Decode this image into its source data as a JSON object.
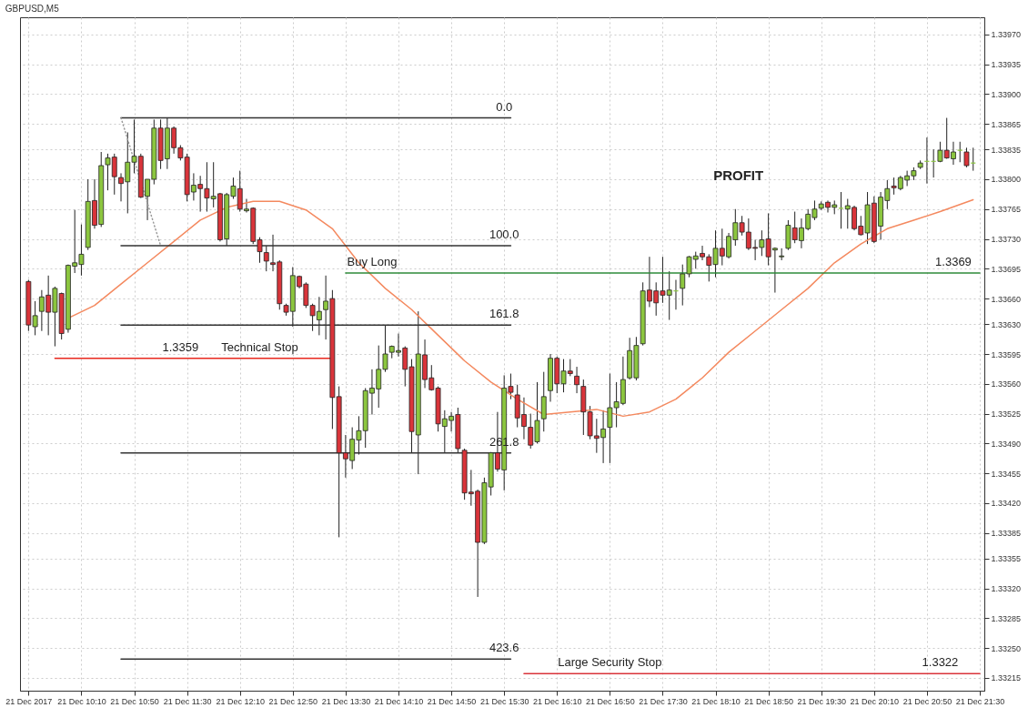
{
  "chart_data": {
    "type": "candlestick",
    "title": "GBPUSD,M5",
    "x": [
      "2017-12-21T09:30",
      "2017-12-21T09:35",
      "2017-12-21T09:40",
      "2017-12-21T09:45",
      "2017-12-21T09:50",
      "2017-12-21T09:55",
      "2017-12-21T10:00",
      "2017-12-21T10:05",
      "2017-12-21T10:10",
      "2017-12-21T10:15",
      "2017-12-21T10:20",
      "2017-12-21T10:25",
      "2017-12-21T10:30",
      "2017-12-21T10:35",
      "2017-12-21T10:40",
      "2017-12-21T10:45",
      "2017-12-21T10:50",
      "2017-12-21T10:55",
      "2017-12-21T11:00",
      "2017-12-21T11:05",
      "2017-12-21T11:10",
      "2017-12-21T11:15",
      "2017-12-21T11:20",
      "2017-12-21T11:25",
      "2017-12-21T11:30",
      "2017-12-21T11:35",
      "2017-12-21T11:40",
      "2017-12-21T11:45",
      "2017-12-21T11:50",
      "2017-12-21T11:55",
      "2017-12-21T12:00",
      "2017-12-21T12:05",
      "2017-12-21T12:10",
      "2017-12-21T12:15",
      "2017-12-21T12:20",
      "2017-12-21T12:25",
      "2017-12-21T12:30",
      "2017-12-21T12:35",
      "2017-12-21T12:40",
      "2017-12-21T12:45",
      "2017-12-21T12:50",
      "2017-12-21T12:55",
      "2017-12-21T13:00",
      "2017-12-21T13:05",
      "2017-12-21T13:10",
      "2017-12-21T13:15",
      "2017-12-21T13:20",
      "2017-12-21T13:25",
      "2017-12-21T13:30",
      "2017-12-21T13:35",
      "2017-12-21T13:40",
      "2017-12-21T13:45",
      "2017-12-21T13:50",
      "2017-12-21T13:55",
      "2017-12-21T14:00",
      "2017-12-21T14:05",
      "2017-12-21T14:10",
      "2017-12-21T14:15",
      "2017-12-21T14:20",
      "2017-12-21T14:25",
      "2017-12-21T14:30",
      "2017-12-21T14:35",
      "2017-12-21T14:40",
      "2017-12-21T14:45",
      "2017-12-21T14:50",
      "2017-12-21T14:55",
      "2017-12-21T15:00",
      "2017-12-21T15:05",
      "2017-12-21T15:10",
      "2017-12-21T15:15",
      "2017-12-21T15:20",
      "2017-12-21T15:25",
      "2017-12-21T15:30",
      "2017-12-21T15:35",
      "2017-12-21T15:40",
      "2017-12-21T15:45",
      "2017-12-21T15:50",
      "2017-12-21T15:55",
      "2017-12-21T16:00",
      "2017-12-21T16:05",
      "2017-12-21T16:10",
      "2017-12-21T16:15",
      "2017-12-21T16:20",
      "2017-12-21T16:25",
      "2017-12-21T16:30",
      "2017-12-21T16:35",
      "2017-12-21T16:40",
      "2017-12-21T16:45",
      "2017-12-21T16:50",
      "2017-12-21T16:55",
      "2017-12-21T17:00",
      "2017-12-21T17:05",
      "2017-12-21T17:10",
      "2017-12-21T17:15",
      "2017-12-21T17:20",
      "2017-12-21T17:25",
      "2017-12-21T17:30",
      "2017-12-21T17:35",
      "2017-12-21T17:40",
      "2017-12-21T17:45",
      "2017-12-21T17:50",
      "2017-12-21T17:55",
      "2017-12-21T18:00",
      "2017-12-21T18:05",
      "2017-12-21T18:10",
      "2017-12-21T18:15",
      "2017-12-21T18:20",
      "2017-12-21T18:25",
      "2017-12-21T18:30",
      "2017-12-21T18:35",
      "2017-12-21T18:40",
      "2017-12-21T18:45",
      "2017-12-21T18:50",
      "2017-12-21T18:55",
      "2017-12-21T19:00",
      "2017-12-21T19:05",
      "2017-12-21T19:10",
      "2017-12-21T19:15",
      "2017-12-21T19:20",
      "2017-12-21T19:25",
      "2017-12-21T19:30",
      "2017-12-21T19:35",
      "2017-12-21T19:40",
      "2017-12-21T19:45",
      "2017-12-21T19:50",
      "2017-12-21T19:55",
      "2017-12-21T20:00",
      "2017-12-21T20:05",
      "2017-12-21T20:10",
      "2017-12-21T20:15",
      "2017-12-21T20:20",
      "2017-12-21T20:25",
      "2017-12-21T20:30",
      "2017-12-21T20:35",
      "2017-12-21T20:40",
      "2017-12-21T20:45",
      "2017-12-21T20:50",
      "2017-12-21T20:55",
      "2017-12-21T21:00",
      "2017-12-21T21:05",
      "2017-12-21T21:10",
      "2017-12-21T21:15",
      "2017-12-21T21:20",
      "2017-12-21T21:25"
    ],
    "ohlc": [
      [
        1.3368,
        1.33682,
        1.33622,
        1.33629
      ],
      [
        1.33627,
        1.33657,
        1.33617,
        1.3364
      ],
      [
        1.33645,
        1.3367,
        1.33622,
        1.33662
      ],
      [
        1.33664,
        1.33687,
        1.33617,
        1.33644
      ],
      [
        1.33644,
        1.33674,
        1.33604,
        1.33672
      ],
      [
        1.33666,
        1.33667,
        1.33612,
        1.33619
      ],
      [
        1.33624,
        1.337,
        1.3362,
        1.33699
      ],
      [
        1.33698,
        1.33764,
        1.3369,
        1.33702
      ],
      [
        1.337,
        1.33747,
        1.33687,
        1.33712
      ],
      [
        1.3372,
        1.338,
        1.33717,
        1.33774
      ],
      [
        1.33775,
        1.338,
        1.33742,
        1.33746
      ],
      [
        1.33747,
        1.33832,
        1.33744,
        1.33816
      ],
      [
        1.33817,
        1.3383,
        1.33787,
        1.33825
      ],
      [
        1.33826,
        1.3383,
        1.33782,
        1.33803
      ],
      [
        1.33802,
        1.33807,
        1.33774,
        1.33795
      ],
      [
        1.33797,
        1.33855,
        1.3376,
        1.3382
      ],
      [
        1.3382,
        1.3387,
        1.33807,
        1.33827
      ],
      [
        1.33827,
        1.3383,
        1.33778,
        1.33779
      ],
      [
        1.3378,
        1.338,
        1.33752,
        1.338
      ],
      [
        1.338,
        1.3387,
        1.33794,
        1.3386
      ],
      [
        1.3386,
        1.3387,
        1.33812,
        1.33822
      ],
      [
        1.33824,
        1.33872,
        1.33812,
        1.3386
      ],
      [
        1.3386,
        1.33862,
        1.3383,
        1.33837
      ],
      [
        1.33837,
        1.3384,
        1.33822,
        1.33825
      ],
      [
        1.33826,
        1.3383,
        1.33774,
        1.33782
      ],
      [
        1.33785,
        1.33807,
        1.33775,
        1.33793
      ],
      [
        1.33794,
        1.33804,
        1.33762,
        1.33789
      ],
      [
        1.33789,
        1.3382,
        1.33762,
        1.33778
      ],
      [
        1.33777,
        1.3382,
        1.33767,
        1.3378
      ],
      [
        1.33783,
        1.33784,
        1.33727,
        1.33729
      ],
      [
        1.3373,
        1.33784,
        1.33722,
        1.33782
      ],
      [
        1.3378,
        1.33802,
        1.33777,
        1.33792
      ],
      [
        1.33789,
        1.3381,
        1.33762,
        1.33765
      ],
      [
        1.33763,
        1.33777,
        1.33761,
        1.33765
      ],
      [
        1.33766,
        1.33767,
        1.33724,
        1.33727
      ],
      [
        1.33729,
        1.33732,
        1.33702,
        1.33715
      ],
      [
        1.33714,
        1.33722,
        1.33692,
        1.33704
      ],
      [
        1.33702,
        1.33735,
        1.33692,
        1.337
      ],
      [
        1.33703,
        1.33705,
        1.33647,
        1.33654
      ],
      [
        1.33652,
        1.33654,
        1.3364,
        1.33644
      ],
      [
        1.33645,
        1.33697,
        1.33627,
        1.33687
      ],
      [
        1.33686,
        1.33687,
        1.33672,
        1.33674
      ],
      [
        1.33677,
        1.33679,
        1.33649,
        1.33652
      ],
      [
        1.33652,
        1.33654,
        1.33622,
        1.3364
      ],
      [
        1.33635,
        1.33662,
        1.33617,
        1.33645
      ],
      [
        1.33647,
        1.33687,
        1.33612,
        1.33657
      ],
      [
        1.3366,
        1.3367,
        1.33507,
        1.33544
      ],
      [
        1.33545,
        1.33557,
        1.3338,
        1.33479
      ],
      [
        1.33479,
        1.335,
        1.3345,
        1.33472
      ],
      [
        1.3347,
        1.33509,
        1.3346,
        1.33495
      ],
      [
        1.33494,
        1.33522,
        1.33477,
        1.33505
      ],
      [
        1.33505,
        1.33555,
        1.33485,
        1.33552
      ],
      [
        1.33549,
        1.33577,
        1.33524,
        1.33555
      ],
      [
        1.33554,
        1.33605,
        1.33532,
        1.33577
      ],
      [
        1.33577,
        1.33629,
        1.33574,
        1.33595
      ],
      [
        1.33597,
        1.33605,
        1.3359,
        1.33604
      ],
      [
        1.33597,
        1.33619,
        1.33592,
        1.33599
      ],
      [
        1.33602,
        1.33604,
        1.33557,
        1.33577
      ],
      [
        1.3358,
        1.33589,
        1.33479,
        1.33504
      ],
      [
        1.335,
        1.33645,
        1.33454,
        1.33595
      ],
      [
        1.33594,
        1.33612,
        1.33555,
        1.33565
      ],
      [
        1.33567,
        1.33582,
        1.33552,
        1.33553
      ],
      [
        1.33555,
        1.33557,
        1.33504,
        1.33513
      ],
      [
        1.3351,
        1.33529,
        1.33479,
        1.33519
      ],
      [
        1.33517,
        1.33527,
        1.33504,
        1.33522
      ],
      [
        1.33524,
        1.33532,
        1.33479,
        1.33484
      ],
      [
        1.33482,
        1.33484,
        1.33424,
        1.33432
      ],
      [
        1.33433,
        1.33459,
        1.33417,
        1.33431
      ],
      [
        1.33434,
        1.33436,
        1.3331,
        1.33374
      ],
      [
        1.33374,
        1.3345,
        1.33372,
        1.33444
      ],
      [
        1.33439,
        1.3348,
        1.33429,
        1.33479
      ],
      [
        1.33479,
        1.33527,
        1.33457,
        1.3346
      ],
      [
        1.33459,
        1.3357,
        1.33435,
        1.33555
      ],
      [
        1.33557,
        1.33572,
        1.33542,
        1.3355
      ],
      [
        1.33547,
        1.33559,
        1.33509,
        1.3352
      ],
      [
        1.33524,
        1.33544,
        1.33495,
        1.3351
      ],
      [
        1.33509,
        1.33525,
        1.33484,
        1.33488
      ],
      [
        1.33492,
        1.33562,
        1.3349,
        1.33517
      ],
      [
        1.33519,
        1.33574,
        1.33504,
        1.33545
      ],
      [
        1.33552,
        1.33595,
        1.33539,
        1.3359
      ],
      [
        1.3359,
        1.33592,
        1.33549,
        1.3356
      ],
      [
        1.3356,
        1.33589,
        1.3355,
        1.33575
      ],
      [
        1.33575,
        1.33589,
        1.33569,
        1.33572
      ],
      [
        1.33569,
        1.3358,
        1.33549,
        1.33559
      ],
      [
        1.33557,
        1.33565,
        1.335,
        1.33527
      ],
      [
        1.33527,
        1.33534,
        1.33495,
        1.33499
      ],
      [
        1.33499,
        1.33519,
        1.33479,
        1.33496
      ],
      [
        1.33497,
        1.33529,
        1.33467,
        1.33507
      ],
      [
        1.33509,
        1.33572,
        1.33467,
        1.33532
      ],
      [
        1.33532,
        1.33562,
        1.33509,
        1.33539
      ],
      [
        1.33537,
        1.33592,
        1.33535,
        1.33565
      ],
      [
        1.33567,
        1.33614,
        1.33565,
        1.33599
      ],
      [
        1.33567,
        1.33615,
        1.33564,
        1.33605
      ],
      [
        1.33607,
        1.33679,
        1.33605,
        1.33669
      ],
      [
        1.3367,
        1.33709,
        1.3365,
        1.33657
      ],
      [
        1.33669,
        1.33679,
        1.3364,
        1.33655
      ],
      [
        1.33669,
        1.33709,
        1.33655,
        1.33664
      ],
      [
        1.33664,
        1.33692,
        1.33635,
        1.3367
      ],
      [
        1.33669,
        1.33682,
        1.33647,
        1.33669
      ],
      [
        1.33672,
        1.337,
        1.33652,
        1.33689
      ],
      [
        1.33689,
        1.3371,
        1.33685,
        1.33709
      ],
      [
        1.33706,
        1.33715,
        1.33695,
        1.3371
      ],
      [
        1.33713,
        1.33722,
        1.33705,
        1.33709
      ],
      [
        1.33709,
        1.33712,
        1.3368,
        1.33699
      ],
      [
        1.337,
        1.3374,
        1.33685,
        1.33719
      ],
      [
        1.33719,
        1.33742,
        1.33699,
        1.3371
      ],
      [
        1.33709,
        1.33737,
        1.33707,
        1.33733
      ],
      [
        1.33729,
        1.33765,
        1.33722,
        1.33749
      ],
      [
        1.33749,
        1.33757,
        1.33734,
        1.33738
      ],
      [
        1.33738,
        1.33754,
        1.33717,
        1.33719
      ],
      [
        1.3372,
        1.33729,
        1.33705,
        1.33719
      ],
      [
        1.3372,
        1.3374,
        1.3371,
        1.33729
      ],
      [
        1.3373,
        1.3376,
        1.33699,
        1.33709
      ],
      [
        1.33717,
        1.3372,
        1.33667,
        1.33719
      ],
      [
        1.33709,
        1.33719,
        1.33705,
        1.3371
      ],
      [
        1.33719,
        1.33752,
        1.33717,
        1.33746
      ],
      [
        1.33743,
        1.33762,
        1.33725,
        1.33729
      ],
      [
        1.33728,
        1.33754,
        1.33719,
        1.33743
      ],
      [
        1.33742,
        1.33765,
        1.3374,
        1.33759
      ],
      [
        1.33755,
        1.33775,
        1.33752,
        1.33765
      ],
      [
        1.33766,
        1.33774,
        1.33764,
        1.33771
      ],
      [
        1.33773,
        1.33775,
        1.33761,
        1.33767
      ],
      [
        1.33767,
        1.33775,
        1.33759,
        1.3377
      ],
      [
        1.33766,
        1.33785,
        1.33742,
        1.33766
      ],
      [
        1.33765,
        1.33777,
        1.33742,
        1.33769
      ],
      [
        1.33767,
        1.33769,
        1.3374,
        1.33742
      ],
      [
        1.33745,
        1.33757,
        1.33734,
        1.33735
      ],
      [
        1.33737,
        1.33785,
        1.33724,
        1.3377
      ],
      [
        1.33772,
        1.3378,
        1.33725,
        1.33727
      ],
      [
        1.33745,
        1.33785,
        1.33729,
        1.33779
      ],
      [
        1.33775,
        1.33799,
        1.33765,
        1.33789
      ],
      [
        1.33792,
        1.33802,
        1.33782,
        1.3379
      ],
      [
        1.33789,
        1.33804,
        1.33787,
        1.33802
      ],
      [
        1.33799,
        1.3381,
        1.33792,
        1.33804
      ],
      [
        1.33804,
        1.33814,
        1.33799,
        1.3381
      ],
      [
        1.33814,
        1.33822,
        1.33812,
        1.33819
      ],
      [
        1.33821,
        1.33849,
        1.33795,
        1.33821
      ],
      [
        1.33821,
        1.33835,
        1.33802,
        1.33821
      ],
      [
        1.33821,
        1.33844,
        1.3382,
        1.33834
      ],
      [
        1.33834,
        1.33872,
        1.33824,
        1.33825
      ],
      [
        1.33824,
        1.33844,
        1.33817,
        1.33832
      ],
      [
        1.33834,
        1.33844,
        1.3382,
        1.33834
      ],
      [
        1.33832,
        1.33837,
        1.33814,
        1.33816
      ],
      [
        1.33819,
        1.33837,
        1.3381,
        1.33819
      ]
    ],
    "colors": [
      "#d9343a",
      "#8cc63f",
      "#8cc63f",
      "#d9343a",
      "#8cc63f",
      "#d9343a",
      "#8cc63f",
      "#8cc63f",
      "#8cc63f",
      "#8cc63f",
      "#d9343a",
      "#8cc63f",
      "#8cc63f",
      "#d9343a",
      "#d9343a",
      "#8cc63f",
      "#8cc63f",
      "#d9343a",
      "#8cc63f",
      "#8cc63f",
      "#d9343a",
      "#8cc63f",
      "#d9343a",
      "#d9343a",
      "#d9343a",
      "#8cc63f",
      "#d9343a",
      "#d9343a",
      "#8cc63f",
      "#d9343a",
      "#8cc63f",
      "#8cc63f",
      "#d9343a",
      "#8cc63f",
      "#d9343a",
      "#d9343a",
      "#d9343a",
      "#d9343a",
      "#d9343a",
      "#d9343a",
      "#8cc63f",
      "#d9343a",
      "#d9343a",
      "#d9343a",
      "#8cc63f",
      "#8cc63f",
      "#d9343a",
      "#d9343a",
      "#d9343a",
      "#8cc63f",
      "#8cc63f",
      "#8cc63f",
      "#8cc63f",
      "#8cc63f",
      "#8cc63f",
      "#8cc63f",
      "#8cc63f",
      "#d9343a",
      "#d9343a",
      "#8cc63f",
      "#d9343a",
      "#d9343a",
      "#d9343a",
      "#8cc63f",
      "#8cc63f",
      "#d9343a",
      "#d9343a",
      "#d9343a",
      "#d9343a",
      "#8cc63f",
      "#8cc63f",
      "#d9343a",
      "#8cc63f",
      "#d9343a",
      "#d9343a",
      "#d9343a",
      "#d9343a",
      "#8cc63f",
      "#8cc63f",
      "#8cc63f",
      "#d9343a",
      "#8cc63f",
      "#d9343a",
      "#d9343a",
      "#d9343a",
      "#d9343a",
      "#d9343a",
      "#8cc63f",
      "#8cc63f",
      "#8cc63f",
      "#8cc63f",
      "#8cc63f",
      "#8cc63f",
      "#8cc63f",
      "#d9343a",
      "#d9343a",
      "#d9343a",
      "#8cc63f",
      "#8cc63f",
      "#8cc63f",
      "#8cc63f",
      "#8cc63f",
      "#d9343a",
      "#d9343a",
      "#8cc63f",
      "#d9343a",
      "#8cc63f",
      "#8cc63f",
      "#d9343a",
      "#d9343a",
      "#d9343a",
      "#8cc63f",
      "#d9343a",
      "#8cc63f",
      "#8cc63f",
      "#8cc63f",
      "#d9343a",
      "#8cc63f",
      "#8cc63f",
      "#8cc63f",
      "#8cc63f",
      "#d9343a",
      "#8cc63f",
      "#8cc63f",
      "#8cc63f",
      "#d9343a",
      "#d9343a",
      "#8cc63f",
      "#d9343a",
      "#8cc63f",
      "#8cc63f",
      "#d9343a",
      "#8cc63f",
      "#8cc63f",
      "#8cc63f",
      "#8cc63f",
      "#8cc63f",
      "#8cc63f",
      "#8cc63f",
      "#d9343a",
      "#8cc63f",
      "#8cc63f",
      "#d9343a",
      "#8cc63f"
    ],
    "series": [
      {
        "type": "line",
        "color": "#f4895f",
        "x": [
          "2017-12-21T10:00",
          "2017-12-21T10:20",
          "2017-12-21T10:40",
          "2017-12-21T11:00",
          "2017-12-21T11:20",
          "2017-12-21T11:40",
          "2017-12-21T12:00",
          "2017-12-21T12:20",
          "2017-12-21T12:40",
          "2017-12-21T13:00",
          "2017-12-21T13:20",
          "2017-12-21T13:40",
          "2017-12-21T14:00",
          "2017-12-21T14:20",
          "2017-12-21T14:40",
          "2017-12-21T15:00",
          "2017-12-21T15:20",
          "2017-12-21T15:40",
          "2017-12-21T16:00",
          "2017-12-21T16:20",
          "2017-12-21T16:40",
          "2017-12-21T17:00",
          "2017-12-21T17:20",
          "2017-12-21T17:40",
          "2017-12-21T18:00",
          "2017-12-21T18:20",
          "2017-12-21T18:40",
          "2017-12-21T19:00",
          "2017-12-21T19:20",
          "2017-12-21T19:40",
          "2017-12-21T20:00",
          "2017-12-21T20:20",
          "2017-12-21T20:40",
          "2017-12-21T21:00",
          "2017-12-21T21:25"
        ],
        "values": [
          1.33637,
          1.33652,
          1.33677,
          1.33702,
          1.33727,
          1.33752,
          1.33767,
          1.33774,
          1.33774,
          1.33764,
          1.33742,
          1.33702,
          1.33672,
          1.33647,
          1.33617,
          1.33587,
          1.33562,
          1.33542,
          1.33524,
          1.33527,
          1.3353,
          1.33522,
          1.33527,
          1.33542,
          1.33567,
          1.33597,
          1.33622,
          1.33647,
          1.33672,
          1.33702,
          1.33724,
          1.33742,
          1.33752,
          1.33762,
          1.33776
        ]
      },
      {
        "type": "line",
        "color": "#333333",
        "x": [
          "2017-12-21T10:40",
          "2017-12-21T15:35"
        ],
        "values": [
          1.33872,
          1.33872
        ]
      },
      {
        "type": "line",
        "color": "#333333",
        "x": [
          "2017-12-21T10:40",
          "2017-12-21T15:35"
        ],
        "values": [
          1.33722,
          1.33722
        ]
      },
      {
        "type": "line",
        "color": "#333333",
        "x": [
          "2017-12-21T10:40",
          "2017-12-21T15:35"
        ],
        "values": [
          1.33629,
          1.33629
        ]
      },
      {
        "type": "line",
        "color": "#333333",
        "x": [
          "2017-12-21T10:40",
          "2017-12-21T15:35"
        ],
        "values": [
          1.33479,
          1.33479
        ]
      },
      {
        "type": "line",
        "color": "#333333",
        "x": [
          "2017-12-21T10:40",
          "2017-12-21T15:35"
        ],
        "values": [
          1.33237,
          1.33237
        ]
      },
      {
        "type": "line",
        "color": "#999999",
        "line_style": "dotted",
        "x": [
          "2017-12-21T10:40",
          "2017-12-21T11:10"
        ],
        "values": [
          1.33872,
          1.33722
        ]
      },
      {
        "type": "line",
        "color": "#e8271d",
        "x": [
          "2017-12-21T09:50",
          "2017-12-21T13:20"
        ],
        "values": [
          1.3359,
          1.3359
        ]
      },
      {
        "type": "line",
        "color": "#2e8b3a",
        "x": [
          "2017-12-21T13:30",
          "2017-12-21T21:30"
        ],
        "values": [
          1.3369,
          1.3369
        ]
      },
      {
        "type": "line",
        "color": "#d9343a",
        "x": [
          "2017-12-21T15:45",
          "2017-12-21T21:30"
        ],
        "values": [
          1.3322,
          1.3322
        ]
      }
    ],
    "annotations": [
      {
        "text": "0.0",
        "x": "2017-12-21T15:30",
        "y": 1.33872
      },
      {
        "text": "100.0",
        "x": "2017-12-21T15:30",
        "y": 1.33722
      },
      {
        "text": "161.8",
        "x": "2017-12-21T15:30",
        "y": 1.33629
      },
      {
        "text": "261.8",
        "x": "2017-12-21T15:30",
        "y": 1.33479
      },
      {
        "text": "423.6",
        "x": "2017-12-21T15:30",
        "y": 1.33237
      },
      {
        "text": "1.3359",
        "x": "2017-12-21T11:25",
        "y": 1.3359
      },
      {
        "text": "Technical Stop",
        "x": "2017-12-21T12:25",
        "y": 1.3359
      },
      {
        "text": "Buy Long",
        "x": "2017-12-21T13:50",
        "y": 1.3369
      },
      {
        "text": "1.3369",
        "x": "2017-12-21T21:10",
        "y": 1.3369
      },
      {
        "text": "Large Security Stop",
        "x": "2017-12-21T16:50",
        "y": 1.3322
      },
      {
        "text": "1.3322",
        "x": "2017-12-21T21:00",
        "y": 1.3322
      },
      "PROFIT"
    ],
    "xlim": [
      "2017-12-21T09:27",
      "2017-12-21T21:30"
    ],
    "xticks": [
      {
        "value": "2017-12-21T09:30",
        "label": "21 Dec 2017"
      },
      {
        "value": "2017-12-21T10:10",
        "label": "21 Dec 10:10"
      },
      {
        "value": "2017-12-21T10:50",
        "label": "21 Dec 10:50"
      },
      {
        "value": "2017-12-21T11:30",
        "label": "21 Dec 11:30"
      },
      {
        "value": "2017-12-21T12:10",
        "label": "21 Dec 12:10"
      },
      {
        "value": "2017-12-21T12:50",
        "label": "21 Dec 12:50"
      },
      {
        "value": "2017-12-21T13:30",
        "label": "21 Dec 13:30"
      },
      {
        "value": "2017-12-21T14:10",
        "label": "21 Dec 14:10"
      },
      {
        "value": "2017-12-21T14:50",
        "label": "21 Dec 14:50"
      },
      {
        "value": "2017-12-21T15:30",
        "label": "21 Dec 15:30"
      },
      {
        "value": "2017-12-21T16:10",
        "label": "21 Dec 16:10"
      },
      {
        "value": "2017-12-21T16:50",
        "label": "21 Dec 16:50"
      },
      {
        "value": "2017-12-21T17:30",
        "label": "21 Dec 17:30"
      },
      {
        "value": "2017-12-21T18:10",
        "label": "21 Dec 18:10"
      },
      {
        "value": "2017-12-21T18:50",
        "label": "21 Dec 18:50"
      },
      {
        "value": "2017-12-21T19:30",
        "label": "21 Dec 19:30"
      },
      {
        "value": "2017-12-21T20:10",
        "label": "21 Dec 20:10"
      },
      {
        "value": "2017-12-21T20:50",
        "label": "21 Dec 20:50"
      },
      {
        "value": "2017-12-21T21:30",
        "label": "21 Dec 21:30"
      }
    ],
    "ylim": [
      1.332,
      1.3399
    ],
    "yticks": [
      {
        "value": 1.3397,
        "label": "1.33970"
      },
      1.33935,
      {
        "value": 1.339,
        "label": "1.33900"
      },
      1.33865,
      1.33835,
      {
        "value": 1.338,
        "label": "1.33800"
      },
      1.33765,
      {
        "value": 1.3373,
        "label": "1.33730"
      },
      1.33695,
      {
        "value": 1.3366,
        "label": "1.33660"
      },
      {
        "value": 1.3363,
        "label": "1.33630"
      },
      1.33595,
      {
        "value": 1.3356,
        "label": "1.33560"
      },
      1.33525,
      {
        "value": 1.3349,
        "label": "1.33490"
      },
      1.33455,
      {
        "value": 1.3342,
        "label": "1.33420"
      },
      1.33385,
      1.33355,
      {
        "value": 1.3332,
        "label": "1.33320"
      },
      1.33285,
      {
        "value": 1.3325,
        "label": "1.33250"
      },
      1.33215
    ],
    "grid": true
  }
}
